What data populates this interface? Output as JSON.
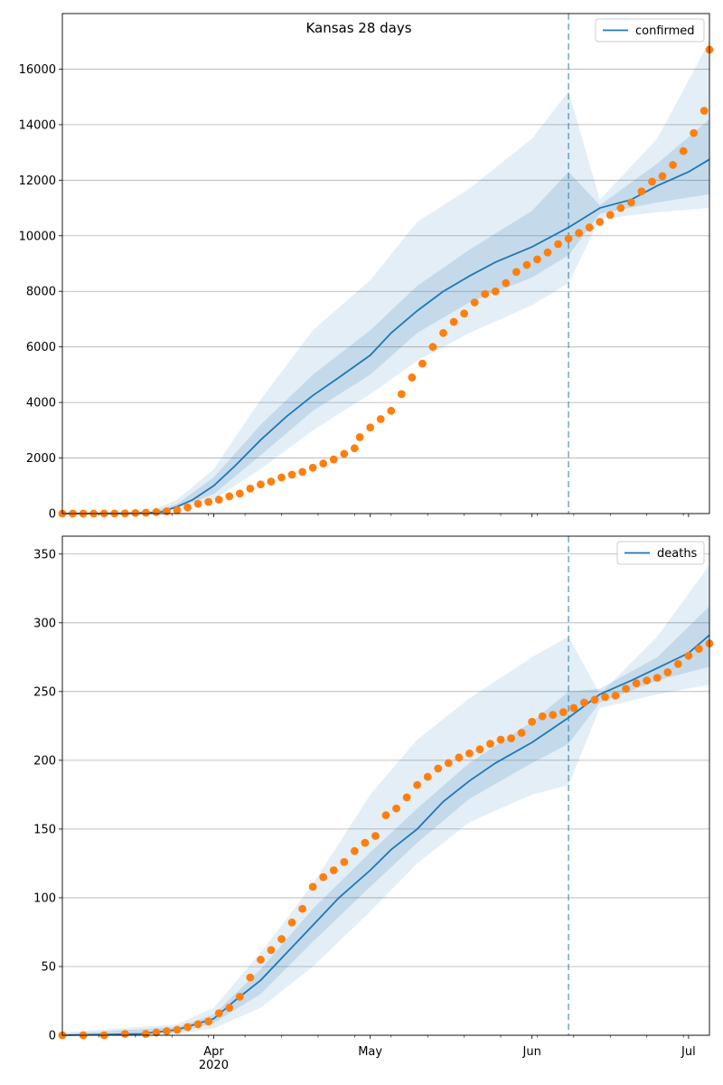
{
  "title": "Kansas 28 days",
  "colors": {
    "model": "#1f77b4",
    "observed": "#ff7f0e",
    "grid": "#b0b0b0",
    "split": "#1f77b4"
  },
  "x_axis": {
    "start": "2020-03-03",
    "end": "2020-07-05",
    "major_ticks": [
      {
        "date": "2020-04-01",
        "label": "Apr"
      },
      {
        "date": "2020-05-01",
        "label": "May"
      },
      {
        "date": "2020-06-01",
        "label": "Jun"
      },
      {
        "date": "2020-07-01",
        "label": "Jul"
      }
    ],
    "year_label": "2020",
    "split_date": "2020-06-08"
  },
  "chart_data": [
    {
      "type": "line",
      "name": "confirmed",
      "legend": "confirmed",
      "legend_position": "top-right",
      "ylim": [
        0,
        18000
      ],
      "yticks": [
        0,
        2000,
        4000,
        6000,
        8000,
        10000,
        12000,
        14000,
        16000
      ],
      "grid": "horizontal",
      "model_median": [
        [
          "2020-03-03",
          0
        ],
        [
          "2020-03-15",
          5
        ],
        [
          "2020-03-20",
          30
        ],
        [
          "2020-03-22",
          60
        ],
        [
          "2020-03-25",
          250
        ],
        [
          "2020-03-28",
          500
        ],
        [
          "2020-04-01",
          1000
        ],
        [
          "2020-04-05",
          1700
        ],
        [
          "2020-04-10",
          2650
        ],
        [
          "2020-04-15",
          3500
        ],
        [
          "2020-04-20",
          4250
        ],
        [
          "2020-04-25",
          4900
        ],
        [
          "2020-05-01",
          5700
        ],
        [
          "2020-05-05",
          6500
        ],
        [
          "2020-05-10",
          7300
        ],
        [
          "2020-05-15",
          8000
        ],
        [
          "2020-05-20",
          8550
        ],
        [
          "2020-05-25",
          9050
        ],
        [
          "2020-06-01",
          9600
        ],
        [
          "2020-06-08",
          10300
        ],
        [
          "2020-06-14",
          11000
        ],
        [
          "2020-06-20",
          11300
        ],
        [
          "2020-06-25",
          11800
        ],
        [
          "2020-07-01",
          12300
        ],
        [
          "2020-07-05",
          12750
        ]
      ],
      "band_outer": [
        [
          "2020-03-03",
          0,
          0
        ],
        [
          "2020-03-20",
          0,
          100
        ],
        [
          "2020-03-25",
          150,
          500
        ],
        [
          "2020-04-01",
          500,
          1600
        ],
        [
          "2020-04-10",
          1600,
          4100
        ],
        [
          "2020-04-20",
          3000,
          6600
        ],
        [
          "2020-05-01",
          4300,
          8400
        ],
        [
          "2020-05-10",
          5500,
          10500
        ],
        [
          "2020-05-20",
          6500,
          11700
        ],
        [
          "2020-06-01",
          7500,
          13500
        ],
        [
          "2020-06-08",
          8300,
          15200
        ],
        [
          "2020-06-14",
          10600,
          11300
        ],
        [
          "2020-06-25",
          10850,
          13500
        ],
        [
          "2020-07-05",
          11000,
          17000
        ]
      ],
      "band_inner": [
        [
          "2020-03-03",
          0,
          0
        ],
        [
          "2020-03-20",
          10,
          50
        ],
        [
          "2020-03-25",
          200,
          350
        ],
        [
          "2020-04-01",
          700,
          1300
        ],
        [
          "2020-04-10",
          2100,
          3200
        ],
        [
          "2020-04-20",
          3700,
          5000
        ],
        [
          "2020-05-01",
          5000,
          6600
        ],
        [
          "2020-05-10",
          6500,
          8200
        ],
        [
          "2020-05-20",
          7600,
          9500
        ],
        [
          "2020-06-01",
          8500,
          10900
        ],
        [
          "2020-06-08",
          9300,
          12300
        ],
        [
          "2020-06-14",
          10800,
          11100
        ],
        [
          "2020-06-25",
          11200,
          12600
        ],
        [
          "2020-07-05",
          11500,
          14200
        ]
      ],
      "observed": [
        [
          "2020-03-03",
          0
        ],
        [
          "2020-03-05",
          0
        ],
        [
          "2020-03-07",
          1
        ],
        [
          "2020-03-09",
          1
        ],
        [
          "2020-03-11",
          2
        ],
        [
          "2020-03-13",
          5
        ],
        [
          "2020-03-15",
          8
        ],
        [
          "2020-03-17",
          18
        ],
        [
          "2020-03-19",
          30
        ],
        [
          "2020-03-21",
          55
        ],
        [
          "2020-03-23",
          80
        ],
        [
          "2020-03-25",
          120
        ],
        [
          "2020-03-27",
          220
        ],
        [
          "2020-03-29",
          350
        ],
        [
          "2020-03-31",
          420
        ],
        [
          "2020-04-02",
          500
        ],
        [
          "2020-04-04",
          620
        ],
        [
          "2020-04-06",
          720
        ],
        [
          "2020-04-08",
          900
        ],
        [
          "2020-04-10",
          1050
        ],
        [
          "2020-04-12",
          1150
        ],
        [
          "2020-04-14",
          1300
        ],
        [
          "2020-04-16",
          1400
        ],
        [
          "2020-04-18",
          1500
        ],
        [
          "2020-04-20",
          1650
        ],
        [
          "2020-04-22",
          1800
        ],
        [
          "2020-04-24",
          1950
        ],
        [
          "2020-04-26",
          2150
        ],
        [
          "2020-04-28",
          2350
        ],
        [
          "2020-04-29",
          2750
        ],
        [
          "2020-05-01",
          3100
        ],
        [
          "2020-05-03",
          3400
        ],
        [
          "2020-05-05",
          3700
        ],
        [
          "2020-05-07",
          4300
        ],
        [
          "2020-05-09",
          4900
        ],
        [
          "2020-05-11",
          5400
        ],
        [
          "2020-05-13",
          6000
        ],
        [
          "2020-05-15",
          6500
        ],
        [
          "2020-05-17",
          6900
        ],
        [
          "2020-05-19",
          7200
        ],
        [
          "2020-05-21",
          7600
        ],
        [
          "2020-05-23",
          7900
        ],
        [
          "2020-05-25",
          8000
        ],
        [
          "2020-05-27",
          8300
        ],
        [
          "2020-05-29",
          8700
        ],
        [
          "2020-05-31",
          8950
        ],
        [
          "2020-06-02",
          9150
        ],
        [
          "2020-06-04",
          9400
        ],
        [
          "2020-06-06",
          9700
        ],
        [
          "2020-06-08",
          9900
        ],
        [
          "2020-06-10",
          10100
        ],
        [
          "2020-06-12",
          10300
        ],
        [
          "2020-06-14",
          10500
        ],
        [
          "2020-06-16",
          10750
        ],
        [
          "2020-06-18",
          11000
        ],
        [
          "2020-06-20",
          11200
        ],
        [
          "2020-06-22",
          11600
        ],
        [
          "2020-06-24",
          11950
        ],
        [
          "2020-06-26",
          12150
        ],
        [
          "2020-06-28",
          12550
        ],
        [
          "2020-06-30",
          13050
        ],
        [
          "2020-07-02",
          13700
        ],
        [
          "2020-07-04",
          14500
        ],
        [
          "2020-07-05",
          16700
        ]
      ]
    },
    {
      "type": "line",
      "name": "deaths",
      "legend": "deaths",
      "legend_position": "top-right",
      "ylim": [
        0,
        363
      ],
      "yticks": [
        0,
        50,
        100,
        150,
        200,
        250,
        300,
        350
      ],
      "grid": "horizontal",
      "model_median": [
        [
          "2020-03-03",
          0
        ],
        [
          "2020-03-18",
          1
        ],
        [
          "2020-03-25",
          4
        ],
        [
          "2020-04-01",
          12
        ],
        [
          "2020-04-05",
          25
        ],
        [
          "2020-04-10",
          40
        ],
        [
          "2020-04-15",
          60
        ],
        [
          "2020-04-20",
          80
        ],
        [
          "2020-04-25",
          100
        ],
        [
          "2020-05-01",
          120
        ],
        [
          "2020-05-05",
          135
        ],
        [
          "2020-05-10",
          150
        ],
        [
          "2020-05-15",
          170
        ],
        [
          "2020-05-20",
          185
        ],
        [
          "2020-05-25",
          198
        ],
        [
          "2020-06-01",
          213
        ],
        [
          "2020-06-08",
          231
        ],
        [
          "2020-06-14",
          248
        ],
        [
          "2020-06-20",
          258
        ],
        [
          "2020-06-25",
          267
        ],
        [
          "2020-07-01",
          278
        ],
        [
          "2020-07-05",
          291
        ]
      ],
      "band_outer": [
        [
          "2020-03-03",
          0,
          2
        ],
        [
          "2020-03-25",
          1,
          8
        ],
        [
          "2020-04-01",
          5,
          20
        ],
        [
          "2020-04-10",
          20,
          60
        ],
        [
          "2020-04-20",
          50,
          110
        ],
        [
          "2020-05-01",
          90,
          175
        ],
        [
          "2020-05-10",
          125,
          215
        ],
        [
          "2020-05-20",
          155,
          245
        ],
        [
          "2020-06-01",
          175,
          275
        ],
        [
          "2020-06-08",
          182,
          290
        ],
        [
          "2020-06-14",
          238,
          248
        ],
        [
          "2020-06-25",
          248,
          290
        ],
        [
          "2020-07-05",
          255,
          342
        ]
      ],
      "band_inner": [
        [
          "2020-03-03",
          0,
          1
        ],
        [
          "2020-03-25",
          2,
          6
        ],
        [
          "2020-04-01",
          9,
          15
        ],
        [
          "2020-04-10",
          30,
          48
        ],
        [
          "2020-04-20",
          68,
          92
        ],
        [
          "2020-05-01",
          108,
          133
        ],
        [
          "2020-05-10",
          140,
          165
        ],
        [
          "2020-05-20",
          172,
          198
        ],
        [
          "2020-06-01",
          198,
          228
        ],
        [
          "2020-06-08",
          212,
          250
        ],
        [
          "2020-06-14",
          242,
          252
        ],
        [
          "2020-06-25",
          258,
          275
        ],
        [
          "2020-07-05",
          268,
          312
        ]
      ],
      "observed": [
        [
          "2020-03-03",
          0
        ],
        [
          "2020-03-07",
          0
        ],
        [
          "2020-03-11",
          0
        ],
        [
          "2020-03-15",
          1
        ],
        [
          "2020-03-19",
          1
        ],
        [
          "2020-03-21",
          2
        ],
        [
          "2020-03-23",
          3
        ],
        [
          "2020-03-25",
          4
        ],
        [
          "2020-03-27",
          6
        ],
        [
          "2020-03-29",
          8
        ],
        [
          "2020-03-31",
          10
        ],
        [
          "2020-04-02",
          16
        ],
        [
          "2020-04-04",
          20
        ],
        [
          "2020-04-06",
          28
        ],
        [
          "2020-04-08",
          42
        ],
        [
          "2020-04-10",
          55
        ],
        [
          "2020-04-12",
          62
        ],
        [
          "2020-04-14",
          70
        ],
        [
          "2020-04-16",
          82
        ],
        [
          "2020-04-18",
          92
        ],
        [
          "2020-04-20",
          108
        ],
        [
          "2020-04-22",
          115
        ],
        [
          "2020-04-24",
          120
        ],
        [
          "2020-04-26",
          126
        ],
        [
          "2020-04-28",
          134
        ],
        [
          "2020-04-30",
          140
        ],
        [
          "2020-05-02",
          145
        ],
        [
          "2020-05-04",
          160
        ],
        [
          "2020-05-06",
          165
        ],
        [
          "2020-05-08",
          173
        ],
        [
          "2020-05-10",
          182
        ],
        [
          "2020-05-12",
          188
        ],
        [
          "2020-05-14",
          194
        ],
        [
          "2020-05-16",
          198
        ],
        [
          "2020-05-18",
          202
        ],
        [
          "2020-05-20",
          205
        ],
        [
          "2020-05-22",
          208
        ],
        [
          "2020-05-24",
          212
        ],
        [
          "2020-05-26",
          215
        ],
        [
          "2020-05-28",
          216
        ],
        [
          "2020-05-30",
          220
        ],
        [
          "2020-06-01",
          228
        ],
        [
          "2020-06-03",
          232
        ],
        [
          "2020-06-05",
          233
        ],
        [
          "2020-06-07",
          235
        ],
        [
          "2020-06-09",
          238
        ],
        [
          "2020-06-11",
          242
        ],
        [
          "2020-06-13",
          244
        ],
        [
          "2020-06-15",
          246
        ],
        [
          "2020-06-17",
          247
        ],
        [
          "2020-06-19",
          252
        ],
        [
          "2020-06-21",
          256
        ],
        [
          "2020-06-23",
          258
        ],
        [
          "2020-06-25",
          260
        ],
        [
          "2020-06-27",
          264
        ],
        [
          "2020-06-29",
          270
        ],
        [
          "2020-07-01",
          276
        ],
        [
          "2020-07-03",
          281
        ],
        [
          "2020-07-05",
          285
        ]
      ]
    }
  ]
}
